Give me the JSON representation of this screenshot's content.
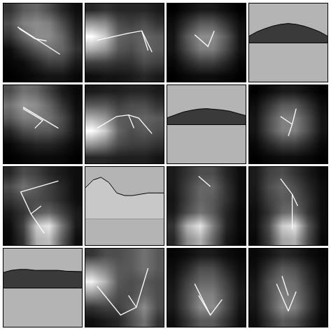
{
  "chart_data": [
    {
      "type": "heatmap",
      "tick_labels": false,
      "xlim": [
        0,
        1
      ],
      "ylim": [
        1,
        0
      ],
      "zlim": [
        0,
        1
      ],
      "x": [
        0.083,
        0.25,
        0.417,
        0.583,
        0.75,
        0.917
      ],
      "y": [
        0.083,
        0.25,
        0.417,
        0.583,
        0.75,
        0.917
      ],
      "cells": [
        [
          0.2,
          0.35,
          0.4,
          0.3,
          0.15,
          0.05
        ],
        [
          0.3,
          0.5,
          0.55,
          0.5,
          0.3,
          0.1
        ],
        [
          0.2,
          0.4,
          0.55,
          0.55,
          0.4,
          0.15
        ],
        [
          0.05,
          0.2,
          0.35,
          0.45,
          0.4,
          0.2
        ],
        [
          0.02,
          0.05,
          0.15,
          0.25,
          0.25,
          0.1
        ],
        [
          0,
          0.02,
          0.05,
          0.08,
          0.08,
          0.03
        ]
      ],
      "lines": [
        {
          "x": [
            0.18,
            0.72
          ],
          "y": [
            0.3,
            0.65
          ]
        },
        {
          "x": [
            0.2,
            0.4,
            0.55
          ],
          "y": [
            0.32,
            0.45,
            0.48
          ]
        }
      ]
    },
    {
      "type": "heatmap",
      "tick_labels": false,
      "xlim": [
        0,
        1
      ],
      "ylim": [
        1,
        0
      ],
      "zlim": [
        0,
        1
      ],
      "x": [
        0.083,
        0.25,
        0.417,
        0.583,
        0.75,
        0.917
      ],
      "y": [
        0.083,
        0.25,
        0.417,
        0.583,
        0.75,
        0.917
      ],
      "cells": [
        [
          0.15,
          0.2,
          0.15,
          0.15,
          0.15,
          0.1
        ],
        [
          0.6,
          0.55,
          0.3,
          0.25,
          0.3,
          0.2
        ],
        [
          1,
          0.8,
          0.4,
          0.35,
          0.4,
          0.35
        ],
        [
          0.7,
          0.6,
          0.35,
          0.3,
          0.4,
          0.35
        ],
        [
          0.25,
          0.25,
          0.2,
          0.2,
          0.3,
          0.25
        ],
        [
          0.05,
          0.08,
          0.08,
          0.1,
          0.15,
          0.1
        ]
      ],
      "lines": [
        {
          "x": [
            0.15,
            0.55,
            0.72,
            0.85
          ],
          "y": [
            0.47,
            0.38,
            0.35,
            0.62
          ]
        },
        {
          "x": [
            0.72,
            0.8
          ],
          "y": [
            0.35,
            0.6
          ]
        }
      ]
    },
    {
      "type": "heatmap",
      "tick_labels": false,
      "xlim": [
        0,
        1
      ],
      "ylim": [
        1,
        0
      ],
      "zlim": [
        0,
        1
      ],
      "x": [
        0.083,
        0.25,
        0.417,
        0.583,
        0.75,
        0.917
      ],
      "y": [
        0.083,
        0.25,
        0.417,
        0.583,
        0.75,
        0.917
      ],
      "cells": [
        [
          0,
          0.05,
          0.1,
          0.1,
          0.05,
          0
        ],
        [
          0.05,
          0.2,
          0.35,
          0.35,
          0.2,
          0.05
        ],
        [
          0.08,
          0.35,
          0.55,
          0.55,
          0.35,
          0.08
        ],
        [
          0.08,
          0.3,
          0.5,
          0.5,
          0.3,
          0.08
        ],
        [
          0.03,
          0.15,
          0.25,
          0.25,
          0.15,
          0.03
        ],
        [
          0,
          0.03,
          0.05,
          0.05,
          0.03,
          0
        ]
      ],
      "lines": [
        {
          "x": [
            0.35,
            0.52,
            0.6
          ],
          "y": [
            0.4,
            0.55,
            0.35
          ]
        }
      ]
    },
    {
      "type": "area",
      "tick_labels": false,
      "xlim": [
        0,
        1
      ],
      "ylim": [
        -0.9,
        0.9
      ],
      "color": "#3a3a3a",
      "x": [
        0,
        0.1,
        0.2,
        0.3,
        0.4,
        0.5,
        0.6,
        0.7,
        0.8,
        0.9,
        1
      ],
      "values": [
        0.15,
        0.25,
        0.32,
        0.38,
        0.42,
        0.44,
        0.42,
        0.38,
        0.32,
        0.25,
        0.15
      ]
    },
    {
      "type": "heatmap",
      "tick_labels": false,
      "xlim": [
        0,
        1
      ],
      "ylim": [
        1,
        0
      ],
      "zlim": [
        0,
        1
      ],
      "x": [
        0.083,
        0.25,
        0.417,
        0.583,
        0.75,
        0.917
      ],
      "y": [
        0.083,
        0.25,
        0.417,
        0.583,
        0.75,
        0.917
      ],
      "cells": [
        [
          0.3,
          0.45,
          0.4,
          0.25,
          0.1,
          0.03
        ],
        [
          0.45,
          0.6,
          0.55,
          0.4,
          0.2,
          0.05
        ],
        [
          0.35,
          0.5,
          0.5,
          0.45,
          0.3,
          0.08
        ],
        [
          0.15,
          0.3,
          0.35,
          0.35,
          0.25,
          0.08
        ],
        [
          0.03,
          0.1,
          0.15,
          0.15,
          0.1,
          0.03
        ],
        [
          0,
          0.02,
          0.04,
          0.04,
          0.03,
          0
        ]
      ],
      "lines": [
        {
          "x": [
            0.25,
            0.7
          ],
          "y": [
            0.28,
            0.55
          ]
        },
        {
          "x": [
            0.25,
            0.5,
            0.4
          ],
          "y": [
            0.3,
            0.45,
            0.55
          ]
        }
      ]
    },
    {
      "type": "heatmap",
      "tick_labels": false,
      "xlim": [
        0,
        1
      ],
      "ylim": [
        1,
        0
      ],
      "zlim": [
        0,
        1
      ],
      "x": [
        0.083,
        0.25,
        0.417,
        0.583,
        0.75,
        0.917
      ],
      "y": [
        0.083,
        0.25,
        0.417,
        0.583,
        0.75,
        0.917
      ],
      "cells": [
        [
          0.1,
          0.12,
          0.12,
          0.15,
          0.15,
          0.1
        ],
        [
          0.35,
          0.35,
          0.25,
          0.3,
          0.3,
          0.2
        ],
        [
          0.7,
          0.6,
          0.35,
          0.35,
          0.4,
          0.35
        ],
        [
          1,
          0.8,
          0.4,
          0.3,
          0.35,
          0.3
        ],
        [
          0.6,
          0.5,
          0.3,
          0.25,
          0.25,
          0.2
        ],
        [
          0.15,
          0.15,
          0.12,
          0.12,
          0.12,
          0.08
        ]
      ],
      "lines": [
        {
          "x": [
            0.15,
            0.4,
            0.55,
            0.68,
            0.85
          ],
          "y": [
            0.55,
            0.4,
            0.38,
            0.42,
            0.62
          ]
        },
        {
          "x": [
            0.55,
            0.62
          ],
          "y": [
            0.38,
            0.55
          ]
        }
      ]
    },
    {
      "type": "area",
      "tick_labels": false,
      "xlim": [
        0,
        1
      ],
      "ylim": [
        -0.9,
        0.9
      ],
      "color": "#3a3a3a",
      "x": [
        0,
        0.1,
        0.2,
        0.3,
        0.4,
        0.5,
        0.6,
        0.7,
        0.8,
        0.9,
        1
      ],
      "values": [
        0.15,
        0.22,
        0.28,
        0.32,
        0.35,
        0.36,
        0.35,
        0.33,
        0.3,
        0.25,
        0.2
      ]
    },
    {
      "type": "heatmap",
      "tick_labels": false,
      "xlim": [
        0,
        1
      ],
      "ylim": [
        1,
        0
      ],
      "zlim": [
        0,
        1
      ],
      "x": [
        0.083,
        0.25,
        0.417,
        0.583,
        0.75,
        0.917
      ],
      "y": [
        0.083,
        0.25,
        0.417,
        0.583,
        0.75,
        0.917
      ],
      "cells": [
        [
          0,
          0.05,
          0.1,
          0.1,
          0.05,
          0
        ],
        [
          0.05,
          0.2,
          0.35,
          0.35,
          0.2,
          0.05
        ],
        [
          0.08,
          0.3,
          0.5,
          0.5,
          0.3,
          0.08
        ],
        [
          0.08,
          0.3,
          0.5,
          0.5,
          0.3,
          0.08
        ],
        [
          0.03,
          0.15,
          0.25,
          0.25,
          0.15,
          0.03
        ],
        [
          0,
          0.03,
          0.05,
          0.05,
          0.03,
          0
        ]
      ],
      "lines": [
        {
          "x": [
            0.4,
            0.55,
            0.6
          ],
          "y": [
            0.4,
            0.5,
            0.3
          ]
        },
        {
          "x": [
            0.55,
            0.5
          ],
          "y": [
            0.5,
            0.65
          ]
        }
      ]
    },
    {
      "type": "heatmap",
      "tick_labels": false,
      "xlim": [
        0,
        1
      ],
      "ylim": [
        1,
        0
      ],
      "zlim": [
        0,
        1
      ],
      "x": [
        0.083,
        0.25,
        0.417,
        0.583,
        0.75,
        0.917
      ],
      "y": [
        0.083,
        0.25,
        0.417,
        0.583,
        0.75,
        0.917
      ],
      "cells": [
        [
          0.15,
          0.3,
          0.25,
          0.15,
          0.1,
          0.05
        ],
        [
          0.3,
          0.45,
          0.35,
          0.25,
          0.15,
          0.05
        ],
        [
          0.2,
          0.3,
          0.3,
          0.25,
          0.15,
          0.05
        ],
        [
          0.1,
          0.2,
          0.35,
          0.4,
          0.25,
          0.1
        ],
        [
          0.05,
          0.25,
          0.8,
          0.9,
          0.45,
          0.1
        ],
        [
          0.03,
          0.2,
          0.7,
          0.75,
          0.35,
          0.05
        ]
      ],
      "lines": [
        {
          "x": [
            0.7,
            0.22,
            0.35,
            0.52
          ],
          "y": [
            0.18,
            0.32,
            0.6,
            0.85
          ]
        },
        {
          "x": [
            0.35,
            0.48
          ],
          "y": [
            0.6,
            0.5
          ]
        }
      ]
    },
    {
      "type": "area",
      "tick_labels": false,
      "xlim": [
        0,
        1
      ],
      "ylim": [
        -0.5,
        1
      ],
      "color": "#c8c8c8",
      "x": [
        0,
        0.1,
        0.2,
        0.3,
        0.4,
        0.5,
        0.6,
        0.7,
        0.8,
        0.9,
        1
      ],
      "values": [
        0.6,
        0.75,
        0.8,
        0.7,
        0.5,
        0.45,
        0.45,
        0.48,
        0.5,
        0.5,
        0.5
      ]
    },
    {
      "type": "heatmap",
      "tick_labels": false,
      "xlim": [
        0,
        1
      ],
      "ylim": [
        1,
        0
      ],
      "zlim": [
        0,
        1
      ],
      "x": [
        0.083,
        0.25,
        0.417,
        0.583,
        0.75,
        0.917
      ],
      "y": [
        0.083,
        0.25,
        0.417,
        0.583,
        0.75,
        0.917
      ],
      "cells": [
        [
          0.1,
          0.2,
          0.3,
          0.3,
          0.15,
          0.05
        ],
        [
          0.1,
          0.25,
          0.4,
          0.4,
          0.2,
          0.05
        ],
        [
          0.08,
          0.25,
          0.4,
          0.35,
          0.2,
          0.05
        ],
        [
          0.1,
          0.3,
          0.45,
          0.35,
          0.15,
          0.03
        ],
        [
          0.2,
          0.7,
          0.9,
          0.5,
          0.15,
          0.03
        ],
        [
          0.15,
          0.55,
          0.7,
          0.4,
          0.1,
          0.02
        ]
      ],
      "lines": [
        {
          "x": [
            0.4,
            0.55
          ],
          "y": [
            0.12,
            0.25
          ]
        }
      ]
    },
    {
      "type": "heatmap",
      "tick_labels": false,
      "xlim": [
        0,
        1
      ],
      "ylim": [
        1,
        0
      ],
      "zlim": [
        0,
        1
      ],
      "x": [
        0.083,
        0.25,
        0.417,
        0.583,
        0.75,
        0.917
      ],
      "y": [
        0.083,
        0.25,
        0.417,
        0.583,
        0.75,
        0.917
      ],
      "cells": [
        [
          0.1,
          0.25,
          0.3,
          0.2,
          0.1,
          0.03
        ],
        [
          0.1,
          0.3,
          0.4,
          0.3,
          0.15,
          0.05
        ],
        [
          0.08,
          0.25,
          0.35,
          0.35,
          0.2,
          0.05
        ],
        [
          0.05,
          0.2,
          0.4,
          0.45,
          0.2,
          0.05
        ],
        [
          0.05,
          0.3,
          0.8,
          0.9,
          0.35,
          0.05
        ],
        [
          0.03,
          0.25,
          0.65,
          0.7,
          0.3,
          0.03
        ]
      ],
      "lines": [
        {
          "x": [
            0.4,
            0.55,
            0.55
          ],
          "y": [
            0.15,
            0.35,
            0.8
          ]
        },
        {
          "x": [
            0.55,
            0.62
          ],
          "y": [
            0.35,
            0.5
          ]
        }
      ]
    },
    {
      "type": "area",
      "tick_labels": false,
      "xlim": [
        0,
        1
      ],
      "ylim": [
        -0.9,
        0.9
      ],
      "color": "#3a3a3a",
      "x": [
        0,
        0.1,
        0.2,
        0.3,
        0.4,
        0.5,
        0.6,
        0.7,
        0.8,
        0.9,
        1
      ],
      "values": [
        0.35,
        0.4,
        0.42,
        0.42,
        0.4,
        0.4,
        0.4,
        0.4,
        0.38,
        0.38,
        0.37
      ]
    },
    {
      "type": "heatmap",
      "tick_labels": false,
      "xlim": [
        0,
        1
      ],
      "ylim": [
        1,
        0
      ],
      "zlim": [
        0,
        1
      ],
      "x": [
        0.083,
        0.25,
        0.417,
        0.583,
        0.75,
        0.917
      ],
      "y": [
        0.083,
        0.25,
        0.417,
        0.583,
        0.75,
        0.917
      ],
      "cells": [
        [
          0.2,
          0.3,
          0.3,
          0.35,
          0.45,
          0.35
        ],
        [
          0.6,
          0.5,
          0.35,
          0.35,
          0.45,
          0.35
        ],
        [
          0.95,
          0.7,
          0.35,
          0.3,
          0.35,
          0.3
        ],
        [
          0.6,
          0.5,
          0.3,
          0.3,
          0.4,
          0.3
        ],
        [
          0.2,
          0.25,
          0.25,
          0.35,
          0.55,
          0.3
        ],
        [
          0.05,
          0.1,
          0.15,
          0.3,
          0.45,
          0.2
        ]
      ],
      "lines": [
        {
          "x": [
            0.15,
            0.45,
            0.65,
            0.8
          ],
          "y": [
            0.48,
            0.85,
            0.75,
            0.25
          ]
        },
        {
          "x": [
            0.65,
            0.55
          ],
          "y": [
            0.75,
            0.6
          ]
        }
      ]
    },
    {
      "type": "heatmap",
      "tick_labels": false,
      "xlim": [
        0,
        1
      ],
      "ylim": [
        1,
        0
      ],
      "zlim": [
        0,
        1
      ],
      "x": [
        0.083,
        0.25,
        0.417,
        0.583,
        0.75,
        0.917
      ],
      "y": [
        0.083,
        0.25,
        0.417,
        0.583,
        0.75,
        0.917
      ],
      "cells": [
        [
          0.02,
          0.05,
          0.1,
          0.1,
          0.05,
          0.02
        ],
        [
          0.05,
          0.15,
          0.3,
          0.3,
          0.15,
          0.05
        ],
        [
          0.08,
          0.25,
          0.4,
          0.4,
          0.25,
          0.08
        ],
        [
          0.1,
          0.3,
          0.5,
          0.5,
          0.3,
          0.1
        ],
        [
          0.1,
          0.3,
          0.55,
          0.55,
          0.3,
          0.08
        ],
        [
          0.05,
          0.2,
          0.35,
          0.35,
          0.2,
          0.05
        ]
      ],
      "lines": [
        {
          "x": [
            0.35,
            0.55,
            0.7
          ],
          "y": [
            0.45,
            0.85,
            0.65
          ]
        },
        {
          "x": [
            0.4,
            0.55
          ],
          "y": [
            0.6,
            0.85
          ]
        }
      ]
    },
    {
      "type": "heatmap",
      "tick_labels": false,
      "xlim": [
        0,
        1
      ],
      "ylim": [
        1,
        0
      ],
      "zlim": [
        0,
        1
      ],
      "x": [
        0.083,
        0.25,
        0.417,
        0.583,
        0.75,
        0.917
      ],
      "y": [
        0.083,
        0.25,
        0.417,
        0.583,
        0.75,
        0.917
      ],
      "cells": [
        [
          0.03,
          0.08,
          0.15,
          0.12,
          0.05,
          0.02
        ],
        [
          0.05,
          0.2,
          0.35,
          0.3,
          0.15,
          0.03
        ],
        [
          0.08,
          0.3,
          0.45,
          0.4,
          0.2,
          0.05
        ],
        [
          0.1,
          0.3,
          0.5,
          0.45,
          0.25,
          0.05
        ],
        [
          0.08,
          0.3,
          0.55,
          0.5,
          0.25,
          0.05
        ],
        [
          0.05,
          0.2,
          0.35,
          0.3,
          0.15,
          0.03
        ]
      ],
      "lines": [
        {
          "x": [
            0.35,
            0.5,
            0.6
          ],
          "y": [
            0.45,
            0.8,
            0.55
          ]
        },
        {
          "x": [
            0.42,
            0.5
          ],
          "y": [
            0.35,
            0.6
          ]
        }
      ]
    }
  ]
}
